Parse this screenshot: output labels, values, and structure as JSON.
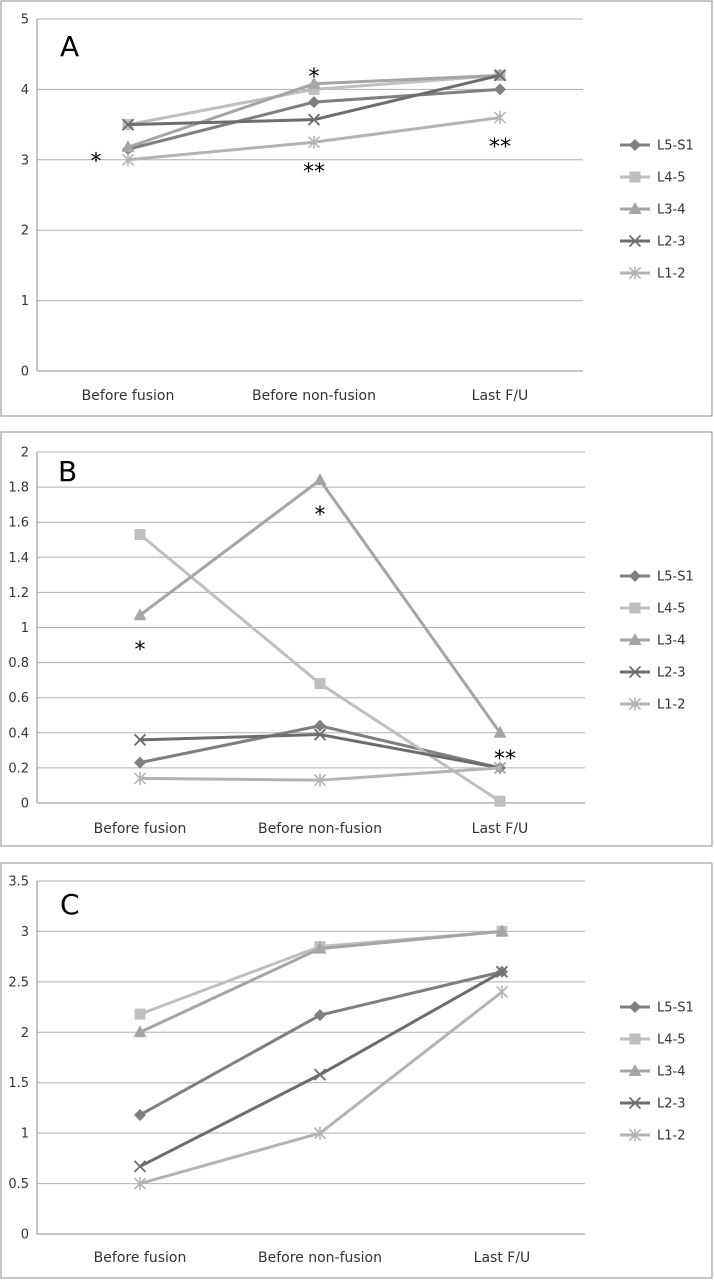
{
  "chart_data": [
    {
      "type": "line",
      "panel_label": "A",
      "categories": [
        "Before fusion",
        "Before non-fusion",
        "Last F/U"
      ],
      "ylim": [
        0,
        5
      ],
      "yticks": [
        0,
        1,
        2,
        3,
        4,
        5
      ],
      "grid": true,
      "legend": "right",
      "series": [
        {
          "name": "L5-S1",
          "values": [
            3.15,
            3.82,
            4.0
          ],
          "color": "#7f7f7f",
          "marker": "diamond"
        },
        {
          "name": "L4-5",
          "values": [
            3.5,
            4.0,
            4.2
          ],
          "color": "#bfbfbf",
          "marker": "square"
        },
        {
          "name": "L3-4",
          "values": [
            3.18,
            4.08,
            4.2
          ],
          "color": "#a5a5a5",
          "marker": "triangle"
        },
        {
          "name": "L2-3",
          "values": [
            3.5,
            3.57,
            4.2
          ],
          "color": "#6d6d6d",
          "marker": "x"
        },
        {
          "name": "L1-2",
          "values": [
            3.0,
            3.25,
            3.6
          ],
          "color": "#b3b3b3",
          "marker": "star"
        }
      ],
      "annotations": [
        {
          "text": "*",
          "x": "Before fusion",
          "y": 3.05,
          "dx": -32
        },
        {
          "text": "*",
          "x": "Before non-fusion",
          "y": 4.25,
          "dx": 0
        },
        {
          "text": "**",
          "x": "Before non-fusion",
          "y": 2.9,
          "dx": 0
        },
        {
          "text": "**",
          "x": "Last F/U",
          "y": 3.25,
          "dx": 0
        }
      ]
    },
    {
      "type": "line",
      "panel_label": "B",
      "categories": [
        "Before fusion",
        "Before non-fusion",
        "Last F/U"
      ],
      "ylim": [
        0,
        2
      ],
      "yticks": [
        0,
        0.2,
        0.4,
        0.6,
        0.8,
        1,
        1.2,
        1.4,
        1.6,
        1.8,
        2
      ],
      "grid": true,
      "legend": "right",
      "series": [
        {
          "name": "L5-S1",
          "values": [
            0.23,
            0.44,
            0.2
          ],
          "color": "#7f7f7f",
          "marker": "diamond"
        },
        {
          "name": "L4-5",
          "values": [
            1.53,
            0.68,
            0.01
          ],
          "color": "#bfbfbf",
          "marker": "square"
        },
        {
          "name": "L3-4",
          "values": [
            1.07,
            1.84,
            0.4
          ],
          "color": "#a5a5a5",
          "marker": "triangle"
        },
        {
          "name": "L2-3",
          "values": [
            0.36,
            0.39,
            0.2
          ],
          "color": "#6d6d6d",
          "marker": "x"
        },
        {
          "name": "L1-2",
          "values": [
            0.14,
            0.13,
            0.2
          ],
          "color": "#b3b3b3",
          "marker": "star"
        }
      ],
      "annotations": [
        {
          "text": "*",
          "x": "Before fusion",
          "y": 0.9,
          "dx": 0
        },
        {
          "text": "*",
          "x": "Before non-fusion",
          "y": 1.67,
          "dx": 0
        },
        {
          "text": "**",
          "x": "Last F/U",
          "y": 0.28,
          "dx": 5
        }
      ]
    },
    {
      "type": "line",
      "panel_label": "C",
      "categories": [
        "Before fusion",
        "Before non-fusion",
        "Last F/U"
      ],
      "ylim": [
        0,
        3.5
      ],
      "yticks": [
        0,
        0.5,
        1,
        1.5,
        2,
        2.5,
        3,
        3.5
      ],
      "grid": true,
      "legend": "right",
      "series": [
        {
          "name": "L5-S1",
          "values": [
            1.18,
            2.17,
            2.6
          ],
          "color": "#7f7f7f",
          "marker": "diamond"
        },
        {
          "name": "L4-5",
          "values": [
            2.18,
            2.85,
            3.0
          ],
          "color": "#bfbfbf",
          "marker": "square"
        },
        {
          "name": "L3-4",
          "values": [
            2.0,
            2.83,
            3.0
          ],
          "color": "#a5a5a5",
          "marker": "triangle"
        },
        {
          "name": "L2-3",
          "values": [
            0.67,
            1.58,
            2.6
          ],
          "color": "#6d6d6d",
          "marker": "x"
        },
        {
          "name": "L1-2",
          "values": [
            0.5,
            1.0,
            2.4
          ],
          "color": "#b3b3b3",
          "marker": "star"
        }
      ],
      "annotations": []
    }
  ]
}
